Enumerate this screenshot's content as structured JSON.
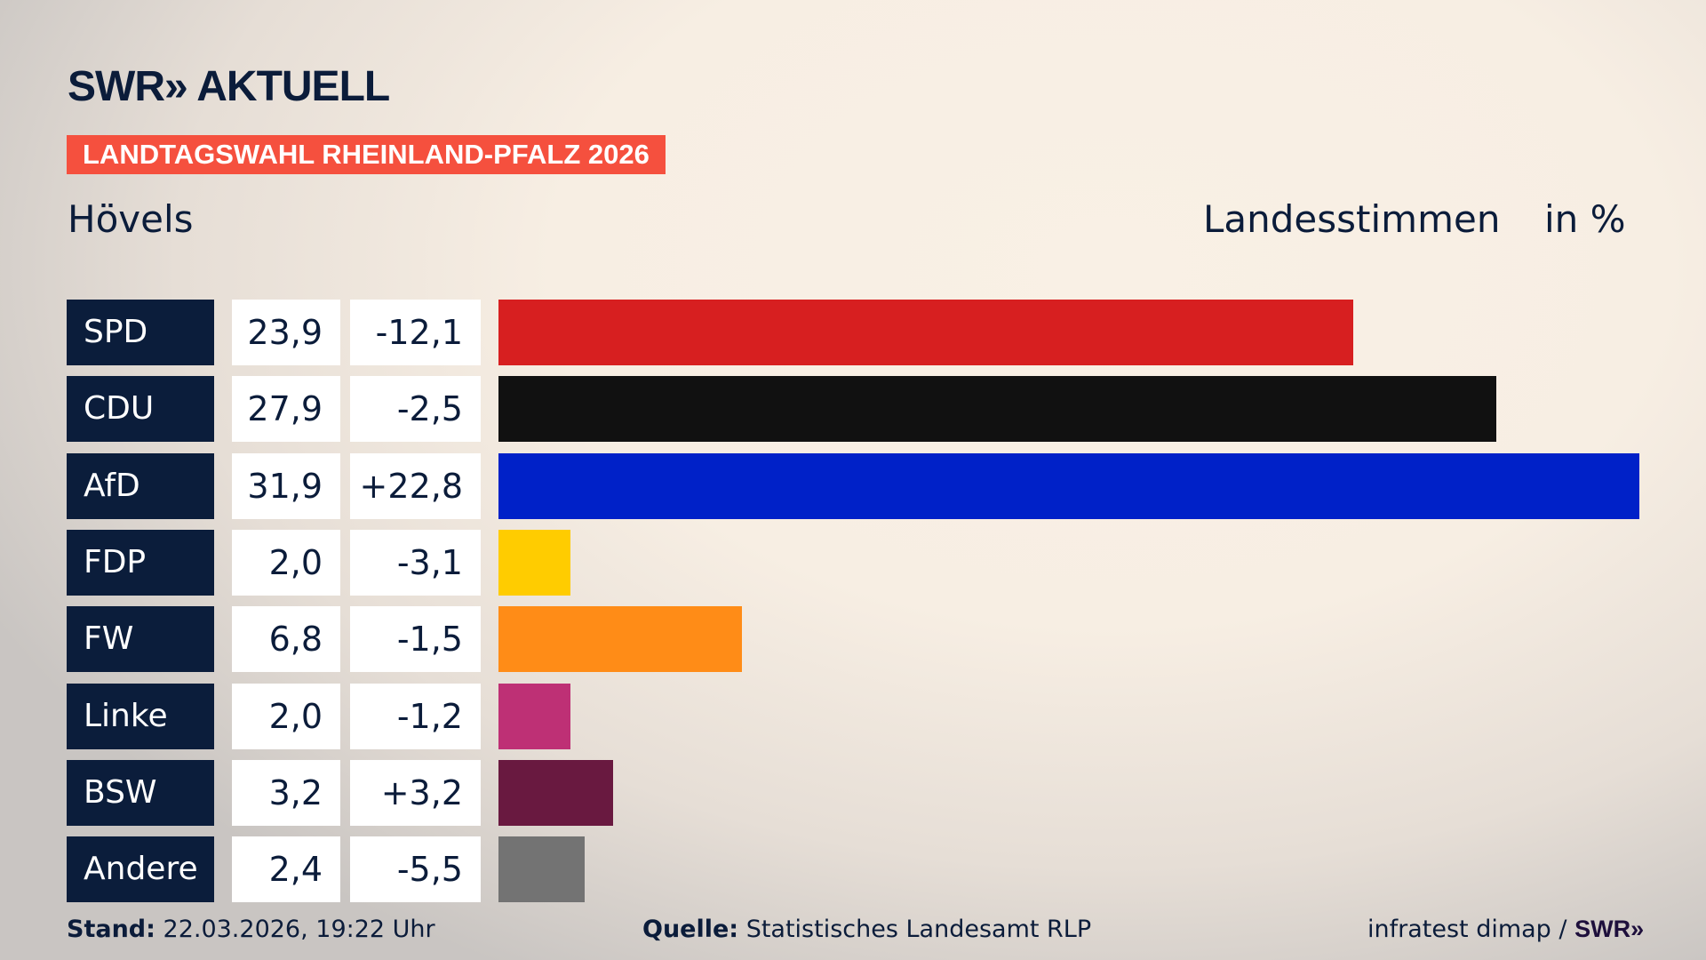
{
  "header": {
    "logo": "SWR» AKTUELL",
    "banner": "LANDTAGSWAHL RHEINLAND-PFALZ 2026",
    "location": "Hövels",
    "measure": "Landesstimmen",
    "unit": "in %"
  },
  "chart_data": {
    "type": "bar",
    "orientation": "horizontal",
    "categories": [
      "SPD",
      "CDU",
      "AfD",
      "FDP",
      "FW",
      "Linke",
      "BSW",
      "Andere"
    ],
    "values": [
      23.9,
      27.9,
      31.9,
      2.0,
      6.8,
      2.0,
      3.2,
      2.4
    ],
    "value_labels": [
      "23,9",
      "27,9",
      "31,9",
      "2,0",
      "6,8",
      "2,0",
      "3,2",
      "2,4"
    ],
    "diff_labels": [
      "-12,1",
      "-2,5",
      "+22,8",
      "-3,1",
      "-1,5",
      "-1,2",
      "+3,2",
      "-5,5"
    ],
    "diffs": [
      -12.1,
      -2.5,
      22.8,
      -3.1,
      -1.5,
      -1.2,
      3.2,
      -5.5
    ],
    "colors": [
      "#d71f20",
      "#111111",
      "#0021c8",
      "#ffcc00",
      "#ff8c17",
      "#be3075",
      "#691940",
      "#737373"
    ],
    "grid": false,
    "legend": "none"
  },
  "footer": {
    "stand_label": "Stand:",
    "stand": "22.03.2026, 19:22 Uhr",
    "source_label": "Quelle:",
    "source": "Statistisches Landesamt RLP",
    "credit": "infratest dimap /",
    "credit_logo": "SWR»"
  }
}
